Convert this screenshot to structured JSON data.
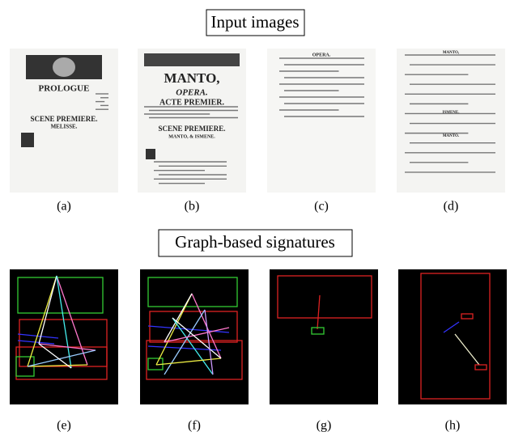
{
  "sections": [
    {
      "title": "Input images",
      "panels": [
        {
          "label": "(a)",
          "headings": [
            "PROLOGUE",
            "SCENE PREMIERE.",
            "MELISSE."
          ]
        },
        {
          "label": "(b)",
          "headings": [
            "MANTO,",
            "OPERA.",
            "ACTE PREMIER.",
            "SCENE PREMIERE.",
            "MANTO, & ISMENE."
          ]
        },
        {
          "label": "(c)",
          "headings": [
            "OPERA."
          ]
        },
        {
          "label": "(d)",
          "headings": [
            "MANTO,",
            "ISMENE.",
            "MANTO."
          ]
        }
      ]
    },
    {
      "title": "Graph-based signatures",
      "panels": [
        {
          "label": "(e)"
        },
        {
          "label": "(f)"
        },
        {
          "label": "(g)"
        },
        {
          "label": "(h)"
        }
      ]
    }
  ]
}
